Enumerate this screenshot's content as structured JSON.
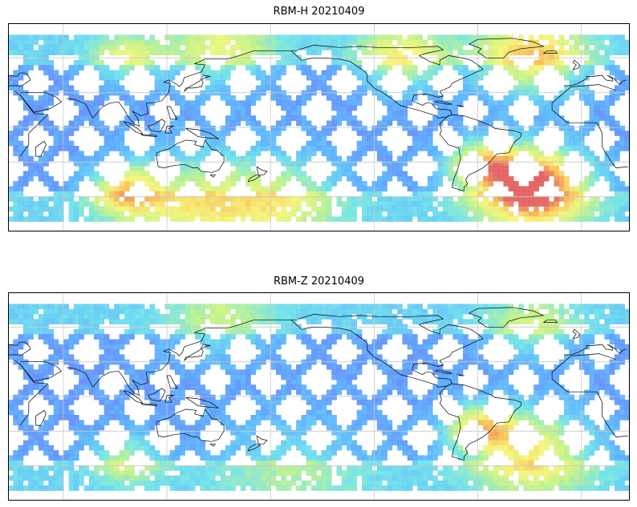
{
  "maps": [
    {
      "title": "RBM-H 20210409",
      "hotspots": [
        {
          "lon": 95,
          "lat": -52,
          "sigma": 14,
          "level": 0.55
        },
        {
          "lon": 95,
          "lat": 62,
          "sigma": 14,
          "level": 0.35
        },
        {
          "lon": 150,
          "lat": 70,
          "sigma": 22,
          "level": 0.35
        },
        {
          "lon": 135,
          "lat": -60,
          "sigma": 28,
          "level": 0.4
        },
        {
          "lon": 330,
          "lat": -48,
          "sigma": 22,
          "level": 1.0
        },
        {
          "lon": 330,
          "lat": 62,
          "sigma": 22,
          "level": 0.55
        },
        {
          "lon": 300,
          "lat": -30,
          "sigma": 14,
          "level": 0.5
        },
        {
          "lon": 255,
          "lat": 62,
          "sigma": 18,
          "level": 0.45
        },
        {
          "lon": 185,
          "lat": -58,
          "sigma": 25,
          "level": 0.35
        }
      ]
    },
    {
      "title": "RBM-Z 20210409",
      "hotspots": [
        {
          "lon": 95,
          "lat": -52,
          "sigma": 14,
          "level": 0.35
        },
        {
          "lon": 150,
          "lat": 70,
          "sigma": 22,
          "level": 0.25
        },
        {
          "lon": 330,
          "lat": -45,
          "sigma": 24,
          "level": 0.55
        },
        {
          "lon": 300,
          "lat": -25,
          "sigma": 14,
          "level": 0.55
        },
        {
          "lon": 330,
          "lat": 62,
          "sigma": 18,
          "level": 0.3
        },
        {
          "lon": 190,
          "lat": -58,
          "sigma": 30,
          "level": 0.2
        }
      ]
    }
  ],
  "colormap": [
    "#5a5af5",
    "#4aaaff",
    "#60e0e8",
    "#b8f080",
    "#f5f56a",
    "#f8b040",
    "#e05050"
  ]
}
